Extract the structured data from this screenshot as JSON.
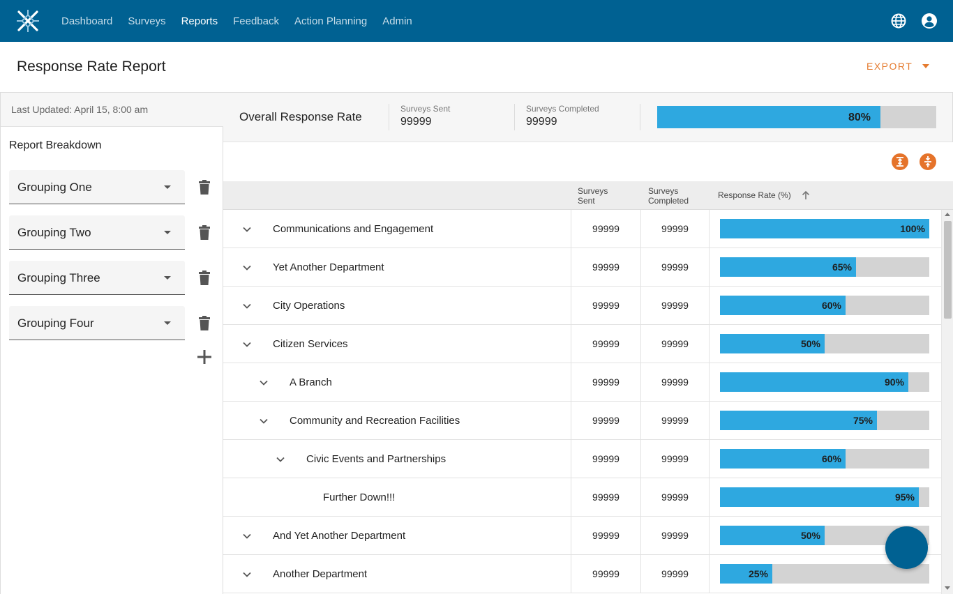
{
  "nav": {
    "logo": "app-logo-icon",
    "items": [
      {
        "label": "Dashboard",
        "active": false
      },
      {
        "label": "Surveys",
        "active": false
      },
      {
        "label": "Reports",
        "active": true
      },
      {
        "label": "Feedback",
        "active": false
      },
      {
        "label": "Action Planning",
        "active": false
      },
      {
        "label": "Admin",
        "active": false
      }
    ],
    "icons": [
      "globe-icon",
      "account-icon"
    ]
  },
  "header": {
    "title": "Response Rate Report",
    "export_label": "EXPORT"
  },
  "sidebar": {
    "last_updated": "Last Updated: April 15, 8:00 am",
    "breakdown_title": "Report Breakdown",
    "groupings": [
      "Grouping One",
      "Grouping Two",
      "Grouping Three",
      "Grouping Four"
    ]
  },
  "summary": {
    "title": "Overall Response Rate",
    "sent_label": "Surveys Sent",
    "sent_value": "99999",
    "completed_label": "Surveys Completed",
    "completed_value": "99999",
    "rate": 80,
    "rate_label": "80%"
  },
  "table": {
    "columns": {
      "sent_line1": "Surveys",
      "sent_line2": "Sent",
      "completed_line1": "Surveys",
      "completed_line2": "Completed",
      "rate": "Response Rate (%)"
    },
    "rows": [
      {
        "name": "Communications and Engagement",
        "level": 0,
        "expandable": true,
        "sent": "99999",
        "completed": "99999",
        "rate": 100,
        "rate_label": "100%"
      },
      {
        "name": "Yet Another Department",
        "level": 0,
        "expandable": true,
        "sent": "99999",
        "completed": "99999",
        "rate": 65,
        "rate_label": "65%"
      },
      {
        "name": "City Operations",
        "level": 0,
        "expandable": true,
        "sent": "99999",
        "completed": "99999",
        "rate": 60,
        "rate_label": "60%"
      },
      {
        "name": "Citizen Services",
        "level": 0,
        "expandable": true,
        "sent": "99999",
        "completed": "99999",
        "rate": 50,
        "rate_label": "50%"
      },
      {
        "name": "A Branch",
        "level": 1,
        "expandable": true,
        "sent": "99999",
        "completed": "99999",
        "rate": 90,
        "rate_label": "90%"
      },
      {
        "name": "Community and Recreation Facilities",
        "level": 1,
        "expandable": true,
        "sent": "99999",
        "completed": "99999",
        "rate": 75,
        "rate_label": "75%"
      },
      {
        "name": "Civic Events and Partnerships",
        "level": 2,
        "expandable": true,
        "sent": "99999",
        "completed": "99999",
        "rate": 60,
        "rate_label": "60%"
      },
      {
        "name": "Further Down!!!",
        "level": 3,
        "expandable": false,
        "sent": "99999",
        "completed": "99999",
        "rate": 95,
        "rate_label": "95%"
      },
      {
        "name": "And Yet Another Department",
        "level": 0,
        "expandable": true,
        "sent": "99999",
        "completed": "99999",
        "rate": 50,
        "rate_label": "50%"
      },
      {
        "name": "Another Department",
        "level": 0,
        "expandable": true,
        "sent": "99999",
        "completed": "99999",
        "rate": 25,
        "rate_label": "25%"
      }
    ]
  },
  "colors": {
    "nav_bg": "#006192",
    "accent_orange": "#e57b2f",
    "bar_fill": "#2ea8e0",
    "bar_track": "#d3d3d3"
  }
}
